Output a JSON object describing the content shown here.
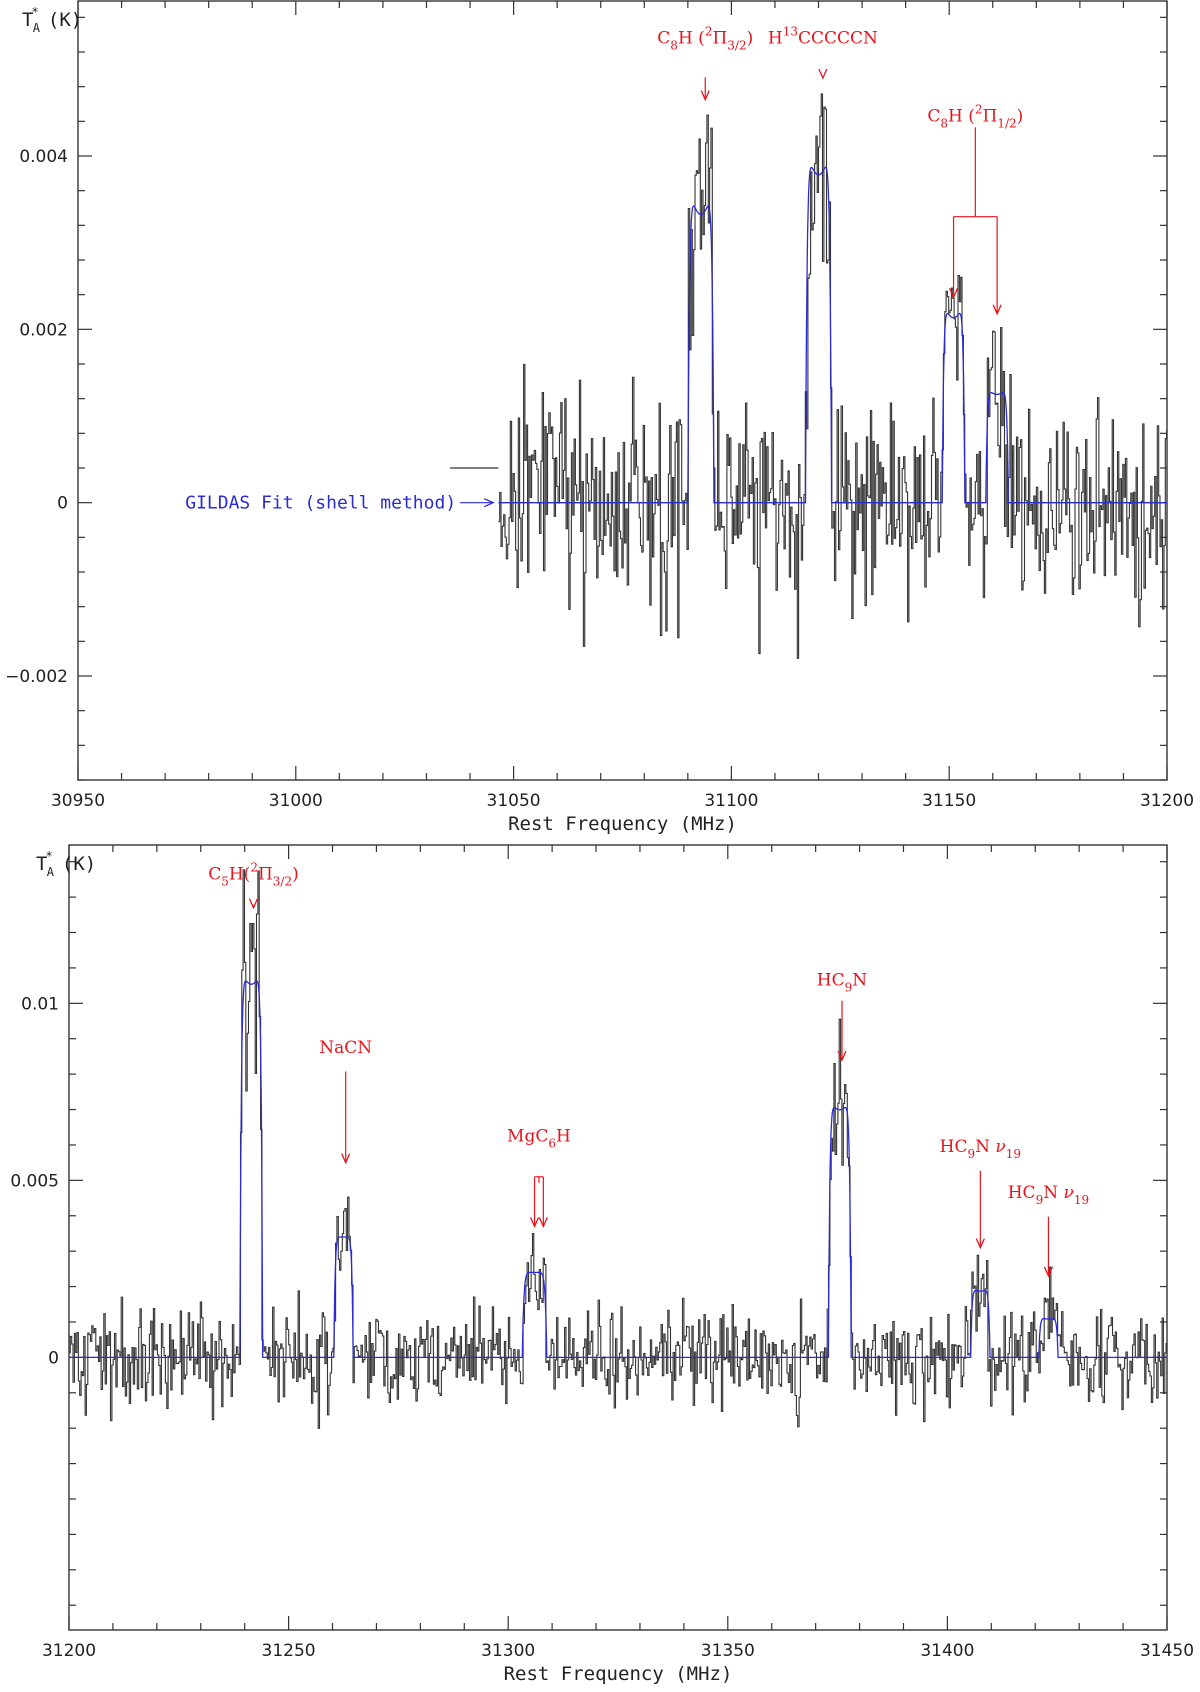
{
  "chart_data": [
    {
      "type": "line",
      "xlabel": "Rest Frequency (MHz)",
      "ylabel": "T",
      "ylabel_sub": "A",
      "ylabel_sup": "*",
      "ylabel_unit": "(K)",
      "xlim": [
        30950,
        31200
      ],
      "ylim": [
        -0.0032,
        0.0058
      ],
      "x_ticks": [
        30950,
        31000,
        31050,
        31100,
        31150,
        31200
      ],
      "y_ticks": [
        -0.002,
        0,
        0.002,
        0.004
      ],
      "y_tick_labels": [
        "−0.002",
        "0",
        "0.002",
        "0.004"
      ],
      "observed": {
        "color": "#333333",
        "x_start": 31046.5,
        "x_end": 31200,
        "noise_rms": 0.0006,
        "seed": 17
      },
      "series": [
        {
          "role": "fit",
          "color": "#2b2bd6",
          "lines": [
            {
              "center": 31093.0,
              "peak": 0.00345,
              "width": 3.0,
              "horn": 0.12
            },
            {
              "center": 31120.0,
              "peak": 0.0039,
              "width": 3.0,
              "horn": 0.1
            },
            {
              "center": 31151.0,
              "peak": 0.0022,
              "width": 2.6,
              "horn": 0.1
            },
            {
              "center": 31161.0,
              "peak": 0.00128,
              "width": 2.6,
              "horn": 0.08
            }
          ]
        }
      ],
      "annotations": [
        {
          "main": "C",
          "sub": "8",
          "after": "H (",
          "sup2": "2",
          "pi": "Π",
          "pisub": "3/2",
          "close": ")",
          "x": 31094.0,
          "label_y": 0.0053,
          "arrow_top": 0.005,
          "arrow_bottom": 0.00465
        },
        {
          "main": "H",
          "sup": "13",
          "after": "CCCCCN",
          "x": 31121.0,
          "label_y": 0.0053,
          "arrow_top": 0.005,
          "arrow_bottom": 0.0049
        },
        {
          "main": "C",
          "sub": "8",
          "after": "H (",
          "sup2": "2",
          "pi": "Π",
          "pisub": "1/2",
          "close": ")",
          "x": 31156.0,
          "label_y": 0.0044,
          "bracket": [
            31151.0,
            31161.0
          ],
          "bracket_top": 0.0044,
          "bracket_y": 0.0033,
          "arrow_bottom": [
            0.00237,
            0.00218
          ]
        }
      ],
      "fit_label": {
        "text": "GILDAS Fit (shell method)",
        "x_end": 31046,
        "y": 0
      }
    },
    {
      "type": "line",
      "xlabel": "Rest Frequency (MHz)",
      "ylabel": "T",
      "ylabel_sub": "A",
      "ylabel_sup": "*",
      "ylabel_unit": "(K)",
      "xlim": [
        31200,
        31450
      ],
      "ylim": [
        -0.0077,
        0.0145
      ],
      "x_ticks": [
        31200,
        31250,
        31300,
        31350,
        31400,
        31450
      ],
      "y_ticks": [
        0,
        0.005,
        0.01
      ],
      "y_tick_labels": [
        "0",
        "0.005",
        "0.01"
      ],
      "observed": {
        "color": "#333333",
        "x_start": 31200,
        "x_end": 31450,
        "noise_rms": 0.0007,
        "seed": 41
      },
      "series": [
        {
          "role": "fit",
          "color": "#2b2bd6",
          "lines": [
            {
              "center": 31241.5,
              "peak": 0.0107,
              "width": 2.6,
              "horn": 0.05
            },
            {
              "center": 31262.5,
              "peak": 0.0034,
              "width": 2.2,
              "horn": 0.0
            },
            {
              "center": 31306.0,
              "peak": 0.0024,
              "width": 2.8,
              "horn": 0.0
            },
            {
              "center": 31375.5,
              "peak": 0.0071,
              "width": 2.6,
              "horn": 0.05
            },
            {
              "center": 31407.5,
              "peak": 0.0019,
              "width": 2.2,
              "horn": 0.05
            },
            {
              "center": 31423.0,
              "peak": 0.0011,
              "width": 2.2,
              "horn": 0.05
            }
          ]
        }
      ],
      "annotations": [
        {
          "main": "C",
          "sub": "5",
          "after": "H(",
          "sup2": "2",
          "pi": "Π",
          "pisub": "3/2",
          "close": ")",
          "x": 31242.0,
          "label_y": 0.0135,
          "arrow_top": 0.013,
          "arrow_bottom": 0.0127
        },
        {
          "main": "NaCN",
          "x": 31263.0,
          "label_y": 0.0086,
          "arrow_top": 0.0083,
          "arrow_bottom": 0.0055
        },
        {
          "main": "MgC",
          "sub": "6",
          "after": "H",
          "x": 31307.0,
          "label_y": 0.0061,
          "bracket": [
            31306.0,
            31308.0
          ],
          "bracket_top": 0.0051,
          "bracket_y": 0.0051,
          "arrow_bottom": [
            0.0037,
            0.0037
          ]
        },
        {
          "main": "HC",
          "sub": "9",
          "after": "N",
          "x": 31376.0,
          "label_y": 0.0105,
          "arrow_top": 0.0103,
          "arrow_bottom": 0.0084
        },
        {
          "main": "HC",
          "sub": "9",
          "after": "N  ",
          "nu": "ν",
          "nusub": "19",
          "x": 31407.5,
          "label_y": 0.0058,
          "arrow_top": 0.0055,
          "arrow_bottom": 0.0031
        },
        {
          "main": "HC",
          "sub": "9",
          "after": "N  ",
          "nu": "ν",
          "nusub": "19",
          "x": 31423.0,
          "label_y": 0.0045,
          "arrow_top": 0.0042,
          "arrow_bottom": 0.0023
        }
      ]
    }
  ],
  "colors": {
    "observed": "#333333",
    "fit": "#2b2bd6",
    "annotation": "#e8141b",
    "axis": "#333333"
  }
}
